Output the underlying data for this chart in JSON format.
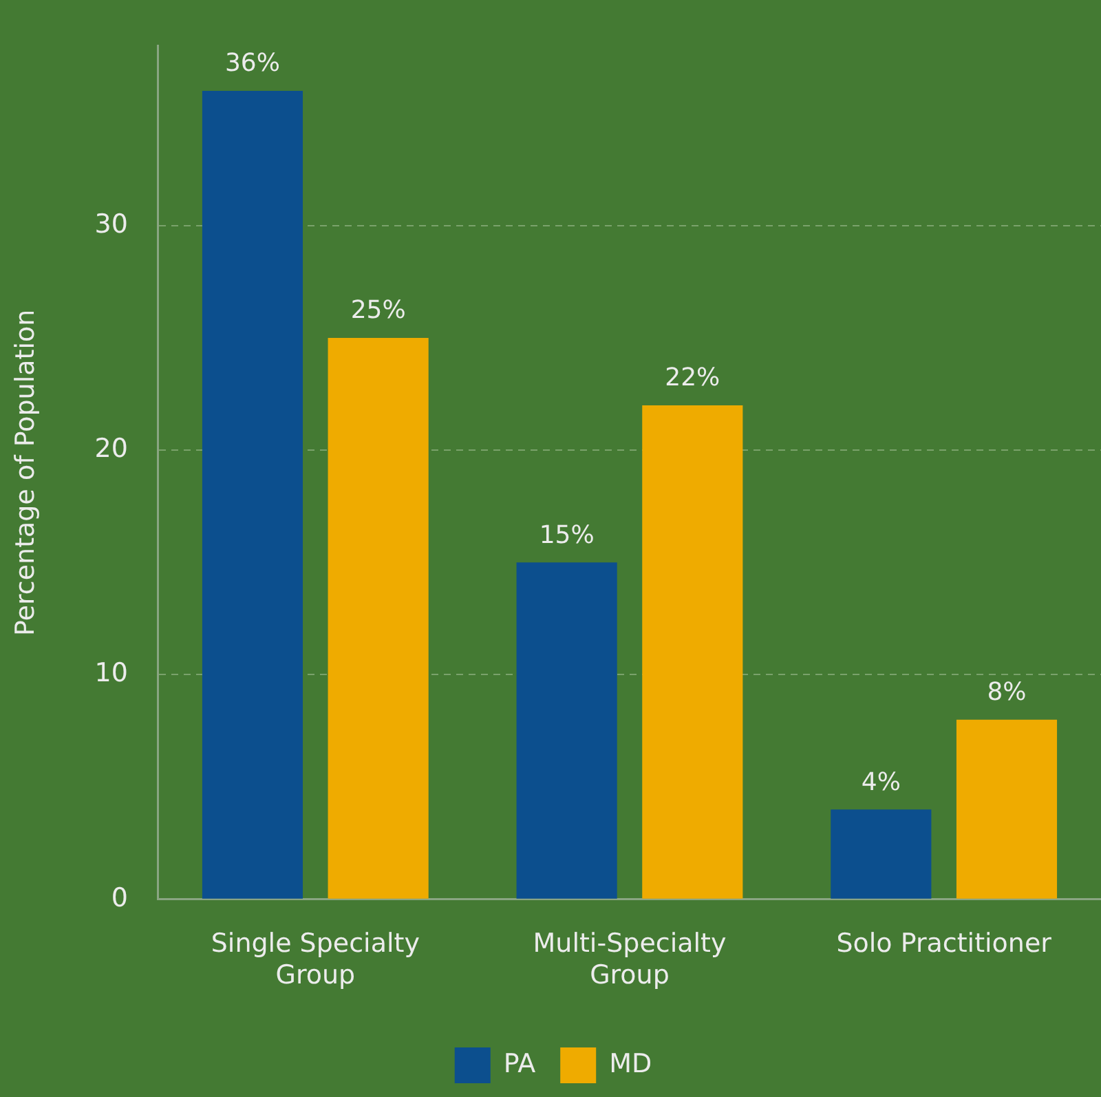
{
  "chart_data": {
    "type": "bar",
    "ylabel": "Percentage of Population",
    "categories": [
      "Single Specialty Group",
      "Multi-Specialty Group",
      "Solo Practitioner"
    ],
    "series": [
      {
        "name": "PA",
        "color": "#0c4f8e",
        "values": [
          36,
          15,
          4
        ],
        "value_labels": [
          "36%",
          "15%",
          "4%"
        ]
      },
      {
        "name": "MD",
        "color": "#efab00",
        "values": [
          25,
          22,
          8
        ],
        "value_labels": [
          "25%",
          "22%",
          "8%"
        ]
      }
    ],
    "ylim": [
      0,
      38
    ],
    "yticks": [
      0,
      10,
      20,
      30
    ],
    "grid": "y",
    "legend": "bottom"
  }
}
